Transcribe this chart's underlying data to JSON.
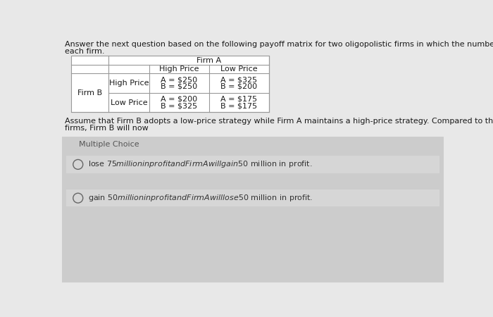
{
  "title_line1": "Answer the next question based on the following payoff matrix for two oligopolistic firms in which the numbers indicate the prof",
  "title_line2": "each firm.",
  "header_firm_a": "Firm A",
  "col_high_price": "High Price",
  "col_low_price": "Low Price",
  "row_label_firm_b": "Firm B",
  "row_high_price": "High Price",
  "row_low_price": "Low Price",
  "cell_hh_a": "A = $250",
  "cell_hh_b": "B = $250",
  "cell_hl_a": "A = $325",
  "cell_hl_b": "B = $200",
  "cell_lh_a": "A = $200",
  "cell_lh_b": "B = $325",
  "cell_ll_a": "A = $175",
  "cell_ll_b": "B = $175",
  "question_line1": "Assume that Firm B adopts a low-price strategy while Firm A maintains a high-price strategy. Compared to the results from a hig",
  "question_line2": "firms, Firm B will now",
  "mc_label": "Multiple Choice",
  "option1": "lose $75 million in profit and Firm A will gain $50 million in profit.",
  "option2": "gain $50 million in profit and Firm A will lose $50 million in profit.",
  "bg_top_color": "#e8e8e8",
  "bg_bottom_color": "#d8d8d8",
  "table_border_color": "#999999",
  "text_color": "#1a1a1a",
  "option_text_color": "#333333",
  "mc_text_color": "#555555",
  "font_size_title": 8.0,
  "font_size_table": 8.0,
  "font_size_question": 8.0,
  "font_size_mc": 8.0,
  "font_size_option": 8.0
}
